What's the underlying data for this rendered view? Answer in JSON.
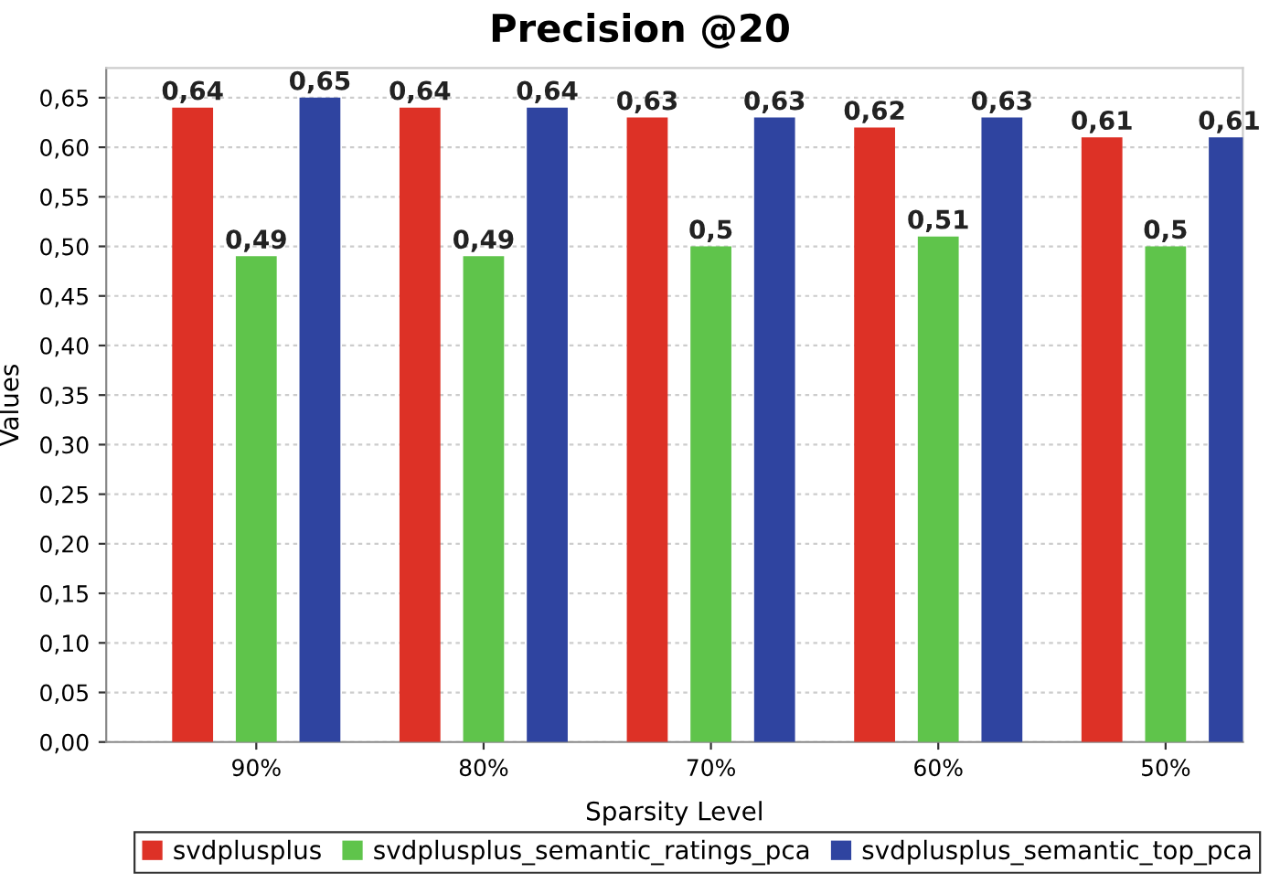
{
  "chart_data": {
    "type": "bar",
    "title": "Precision @20",
    "xlabel": "Sparsity Level",
    "ylabel": "Values",
    "categories": [
      "90%",
      "80%",
      "70%",
      "60%",
      "50%"
    ],
    "series": [
      {
        "name": "svdplusplus",
        "color": "#dd3126",
        "values": [
          0.64,
          0.64,
          0.63,
          0.62,
          0.61
        ],
        "value_labels": [
          "0,64",
          "0,64",
          "0,63",
          "0,62",
          "0,61"
        ]
      },
      {
        "name": "svdplusplus_semantic_ratings_pca",
        "color": "#5fc44b",
        "values": [
          0.49,
          0.49,
          0.5,
          0.51,
          0.5
        ],
        "value_labels": [
          "0,49",
          "0,49",
          "0,5",
          "0,51",
          "0,5"
        ]
      },
      {
        "name": "svdplusplus_semantic_top_pca",
        "color": "#2f44a0",
        "values": [
          0.65,
          0.64,
          0.63,
          0.63,
          0.61
        ],
        "value_labels": [
          "0,65",
          "0,64",
          "0,63",
          "0,63",
          "0,61"
        ]
      }
    ],
    "ylim": [
      0,
      0.68
    ],
    "yticks": [
      {
        "value": 0,
        "label": "0,00"
      },
      {
        "value": 0.05,
        "label": "0,05"
      },
      {
        "value": 0.1,
        "label": "0,10"
      },
      {
        "value": 0.15,
        "label": "0,15"
      },
      {
        "value": 0.2,
        "label": "0,20"
      },
      {
        "value": 0.25,
        "label": "0,25"
      },
      {
        "value": 0.3,
        "label": "0,30"
      },
      {
        "value": 0.35,
        "label": "0,35"
      },
      {
        "value": 0.4,
        "label": "0,40"
      },
      {
        "value": 0.45,
        "label": "0,45"
      },
      {
        "value": 0.5,
        "label": "0,50"
      },
      {
        "value": 0.55,
        "label": "0,55"
      },
      {
        "value": 0.6,
        "label": "0,60"
      },
      {
        "value": 0.65,
        "label": "0,65"
      }
    ],
    "grid": "y",
    "legend": "bottom"
  }
}
